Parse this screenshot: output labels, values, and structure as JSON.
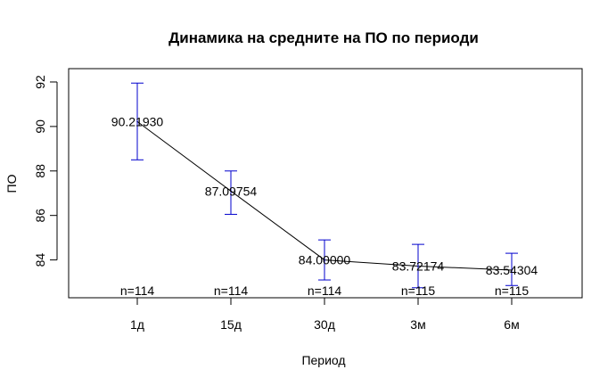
{
  "chart_data": {
    "type": "line",
    "title": "Динамика на средните на ПО по периоди",
    "xlabel": "Период",
    "ylabel": "ПО",
    "categories": [
      "1д",
      "15д",
      "30д",
      "3м",
      "6м"
    ],
    "values": [
      90.2193,
      87.09754,
      84.0,
      83.72174,
      83.54304
    ],
    "value_labels": [
      "90.21930",
      "87.09754",
      "84.00000",
      "83.72174",
      "83.54304"
    ],
    "error_low": [
      88.5,
      86.05,
      83.1,
      82.75,
      82.85
    ],
    "error_high": [
      91.95,
      88.0,
      84.9,
      84.7,
      84.3
    ],
    "n_labels": [
      "n=114",
      "n=114",
      "n=114",
      "n=115",
      "n=115"
    ],
    "ylim": [
      82.3,
      92.6
    ],
    "yticks": [
      84,
      86,
      88,
      90,
      92
    ],
    "grid": false,
    "colors": {
      "line": "#000000",
      "error_bars": "#0000cd",
      "box": "#000000"
    }
  }
}
